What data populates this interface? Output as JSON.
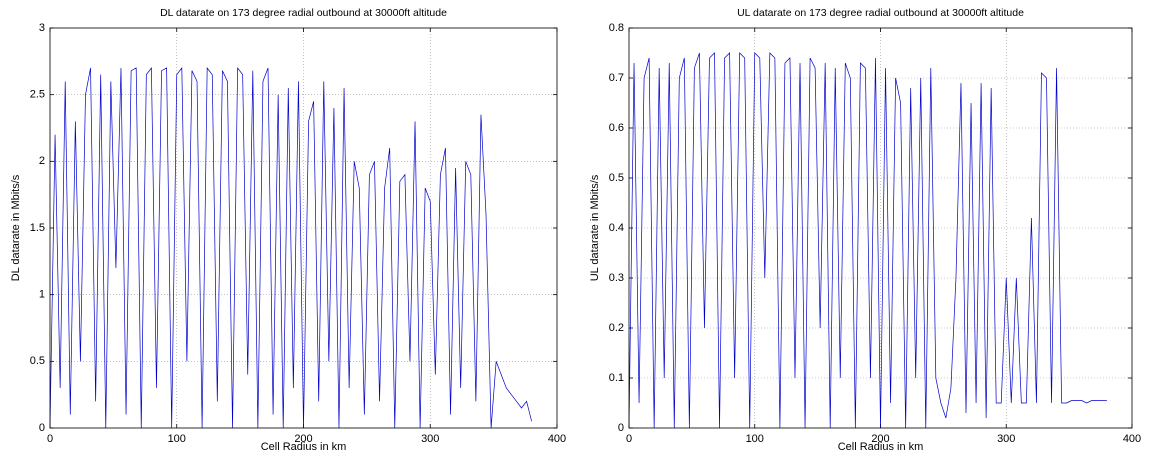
{
  "chart_data": [
    {
      "type": "line",
      "title": "DL datarate on 173 degree radial outbound at 30000ft altitude",
      "xlabel": "Cell Radius in km",
      "ylabel": "DL datarate in Mbits/s",
      "color": "#0000cc",
      "grid": true,
      "xlim": [
        0,
        400
      ],
      "xticks": [
        0,
        100,
        200,
        300,
        400
      ],
      "ylim": [
        0,
        3
      ],
      "yticks": [
        0,
        0.5,
        1,
        1.5,
        2,
        2.5,
        3
      ],
      "x": [
        0,
        4,
        8,
        12,
        16,
        20,
        24,
        28,
        32,
        36,
        40,
        44,
        48,
        52,
        56,
        60,
        64,
        68,
        72,
        76,
        80,
        84,
        88,
        92,
        96,
        100,
        104,
        108,
        112,
        116,
        120,
        124,
        128,
        132,
        136,
        140,
        144,
        148,
        152,
        156,
        160,
        164,
        168,
        172,
        176,
        180,
        184,
        188,
        192,
        196,
        200,
        204,
        208,
        212,
        216,
        220,
        224,
        228,
        232,
        236,
        240,
        244,
        248,
        252,
        256,
        260,
        264,
        268,
        272,
        276,
        280,
        284,
        288,
        292,
        296,
        300,
        304,
        308,
        312,
        316,
        320,
        324,
        328,
        332,
        336,
        340,
        344,
        348,
        352,
        356,
        360,
        364,
        368,
        372,
        376,
        380
      ],
      "values": [
        0,
        2.2,
        0.3,
        2.6,
        0.1,
        2.3,
        0.5,
        2.5,
        2.7,
        0.2,
        2.65,
        0,
        2.6,
        1.2,
        2.7,
        0.1,
        2.68,
        2.7,
        0,
        2.65,
        2.7,
        0.3,
        2.68,
        2.7,
        0,
        2.65,
        2.7,
        0.5,
        2.68,
        2.6,
        0,
        2.7,
        2.65,
        0.2,
        2.68,
        2.6,
        0,
        2.7,
        2.65,
        0.4,
        2.68,
        0,
        2.6,
        2.7,
        0.1,
        2.5,
        0,
        2.55,
        0.3,
        2.6,
        0,
        2.3,
        2.45,
        0.2,
        2.6,
        0.5,
        2.4,
        0,
        2.55,
        0.3,
        2.0,
        1.8,
        0.1,
        1.9,
        2.0,
        0.2,
        1.8,
        2.1,
        0,
        1.85,
        1.9,
        0.5,
        2.3,
        0,
        1.8,
        1.7,
        0.4,
        1.9,
        2.1,
        0.1,
        1.95,
        0.3,
        2.0,
        1.9,
        0.2,
        2.35,
        1.6,
        0,
        0.5,
        0.4,
        0.3,
        0.25,
        0.2,
        0.15,
        0.2,
        0.05
      ]
    },
    {
      "type": "line",
      "title": "UL datarate on 173 degree radial outbound at 30000ft altitude",
      "xlabel": "Cell Radius in km",
      "ylabel": "UL datarate in Mbits/s",
      "color": "#0000cc",
      "grid": true,
      "xlim": [
        0,
        400
      ],
      "xticks": [
        0,
        100,
        200,
        300,
        400
      ],
      "ylim": [
        0,
        0.8
      ],
      "yticks": [
        0,
        0.1,
        0.2,
        0.3,
        0.4,
        0.5,
        0.6,
        0.7,
        0.8
      ],
      "x": [
        0,
        4,
        8,
        12,
        16,
        20,
        24,
        28,
        32,
        36,
        40,
        44,
        48,
        52,
        56,
        60,
        64,
        68,
        72,
        76,
        80,
        84,
        88,
        92,
        96,
        100,
        104,
        108,
        112,
        116,
        120,
        124,
        128,
        132,
        136,
        140,
        144,
        148,
        152,
        156,
        160,
        164,
        168,
        172,
        176,
        180,
        184,
        188,
        192,
        196,
        200,
        204,
        208,
        212,
        216,
        220,
        224,
        228,
        232,
        236,
        240,
        244,
        248,
        252,
        256,
        260,
        264,
        268,
        272,
        276,
        280,
        284,
        288,
        292,
        296,
        300,
        304,
        308,
        312,
        316,
        320,
        324,
        328,
        332,
        336,
        340,
        344,
        348,
        352,
        356,
        360,
        364,
        368,
        372,
        376,
        380
      ],
      "values": [
        0,
        0.73,
        0.05,
        0.7,
        0.74,
        0,
        0.72,
        0.1,
        0.73,
        0,
        0.7,
        0.74,
        0,
        0.72,
        0.75,
        0.2,
        0.74,
        0.75,
        0,
        0.74,
        0.75,
        0.1,
        0.75,
        0.74,
        0,
        0.75,
        0.74,
        0.3,
        0.75,
        0.74,
        0,
        0.73,
        0.74,
        0.1,
        0.73,
        0,
        0.74,
        0.72,
        0.2,
        0.73,
        0,
        0.72,
        0.1,
        0.73,
        0.7,
        0,
        0.73,
        0.72,
        0.1,
        0.74,
        0,
        0.72,
        0.05,
        0.7,
        0.65,
        0,
        0.68,
        0.1,
        0.7,
        0,
        0.72,
        0.1,
        0.05,
        0.02,
        0.08,
        0.3,
        0.69,
        0.03,
        0.65,
        0.05,
        0.69,
        0.02,
        0.68,
        0.05,
        0.05,
        0.3,
        0.05,
        0.3,
        0.05,
        0.05,
        0.42,
        0.05,
        0.71,
        0.7,
        0.05,
        0.72,
        0.05,
        0.05,
        0.055,
        0.055,
        0.055,
        0.05,
        0.055,
        0.055,
        0.055,
        0.055
      ]
    }
  ]
}
